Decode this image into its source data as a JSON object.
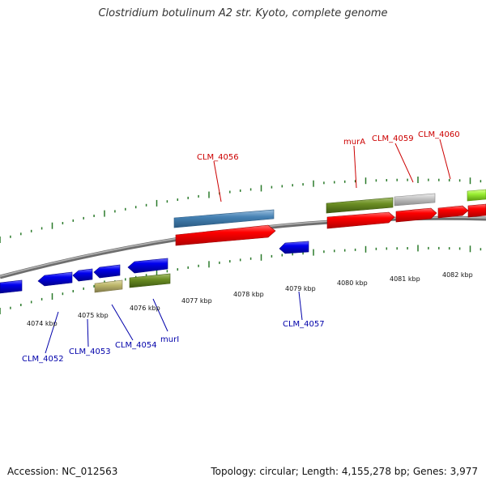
{
  "title": "Clostridium botulinum A2 str. Kyoto, complete genome",
  "footer": {
    "accession": "Accession: NC_012563",
    "summary": "Topology: circular; Length: 4,155,278 bp; Genes: 3,977"
  },
  "colors": {
    "forward_label": "#cc0000",
    "reverse_label": "#0000aa",
    "tick": "#2a7a2a",
    "backbone": "#8a8a8a"
  },
  "axis_ticks": [
    "4074 kbp",
    "4075 kbp",
    "4076 kbp",
    "4077 kbp",
    "4078 kbp",
    "4079 kbp",
    "4080 kbp",
    "4081 kbp",
    "4082 kbp"
  ],
  "gene_labels": {
    "forward": [
      "CLM_4056",
      "murA",
      "CLM_4059",
      "CLM_4060"
    ],
    "reverse": [
      "CLM_4052",
      "CLM_4053",
      "CLM_4054",
      "murI",
      "CLM_4057"
    ]
  }
}
